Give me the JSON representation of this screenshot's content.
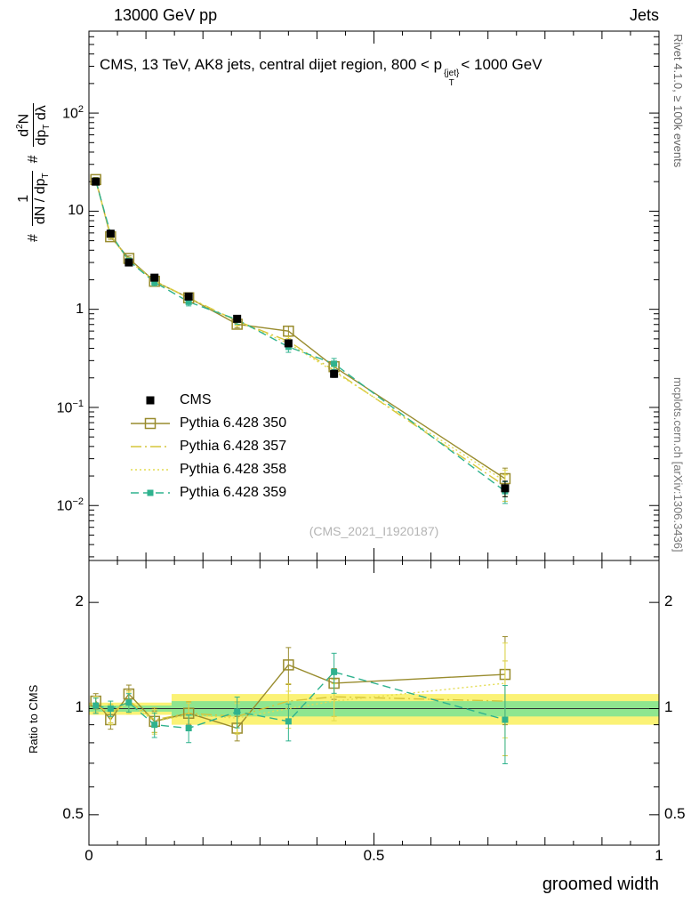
{
  "header": {
    "left": "13000 GeV pp",
    "right": "Jets"
  },
  "title": {
    "pre": "CMS, 13 TeV, AK8 jets, central dijet region, 800 < p",
    "sup": "{jet}",
    "sub": "T",
    "post": "< 1000 GeV"
  },
  "labels": {
    "ratio_ylabel": "Ratio to CMS",
    "xlabel": "groomed width",
    "rivet": "Rivet 4.1.0, ≥ 100k events",
    "mcplots": "mcplots.cern.ch [arXiv:1306.3436]",
    "watermark": "(CMS_2021_I1920187)"
  },
  "ylabel": {
    "hash1": "#",
    "frac1_num": "1",
    "frac1_den_base": "dN / dp",
    "frac1_den_sub": "T",
    "hash2": "#",
    "frac2_num_base": "d",
    "frac2_num_sup": "2",
    "frac2_num_base2": "N",
    "frac2_den_base": "dp",
    "frac2_den_sub": "T",
    "frac2_den_base2": " dλ"
  },
  "colors": {
    "frame": "#000000",
    "band_yellow": "#fbf276",
    "band_green": "#8fe68f",
    "ref_line": "#333333",
    "watermark": "#b4b4b4"
  },
  "axes": {
    "x_tick_labels": [
      {
        "v": 0,
        "t": "0"
      },
      {
        "v": 0.5,
        "t": "0.5"
      },
      {
        "v": 1,
        "t": "1"
      }
    ],
    "y_main_tick_labels": [
      {
        "v": 100,
        "base": "10",
        "exp": "2"
      },
      {
        "v": 10,
        "base": "10",
        "exp": ""
      },
      {
        "v": 1,
        "base": "1",
        "exp": ""
      },
      {
        "v": 0.1,
        "base": "10",
        "exp": "−1"
      },
      {
        "v": 0.01,
        "base": "10",
        "exp": "−2"
      }
    ],
    "y_ratio_tick_labels": [
      {
        "v": 2,
        "t": "2"
      },
      {
        "v": 1,
        "t": "1"
      },
      {
        "v": 0.5,
        "t": "0.5"
      }
    ]
  },
  "chart_data": {
    "type": "line",
    "title": "CMS, 13 TeV, AK8 jets, central dijet region, 800 < p_T^{jet} < 1000 GeV",
    "xlabel": "groomed width",
    "ylabel": "1/(dN/dp_T) d²N/(dp_T dλ)",
    "ratio_ylabel": "Ratio to CMS",
    "x_range": [
      0,
      1
    ],
    "y_scale": "log",
    "y_log_range": [
      -2.56,
      2.835
    ],
    "ratio_scale": "log",
    "ratio_range": [
      0.41,
      2.63
    ],
    "x_minor_step": 0.05,
    "x": [
      0.012,
      0.038,
      0.07,
      0.115,
      0.175,
      0.26,
      0.35,
      0.43,
      0.73
    ],
    "series": [
      {
        "name": "CMS",
        "color": "#000000",
        "line": "none",
        "marker": "square-filled",
        "marker_size": 9,
        "values": [
          20,
          5.9,
          3.0,
          2.1,
          1.35,
          0.8,
          0.45,
          0.22,
          0.015
        ],
        "err_rel": [
          0.05,
          0.05,
          0.05,
          0.05,
          0.06,
          0.06,
          0.07,
          0.08,
          0.18
        ]
      },
      {
        "name": "Pythia 6.428 350",
        "color": "#998c2e",
        "line": "solid",
        "marker": "square-open",
        "marker_size": 11,
        "values": [
          21.0,
          5.49,
          3.3,
          1.93,
          1.31,
          0.704,
          0.599,
          0.26,
          0.0188
        ],
        "ratio": [
          1.05,
          0.93,
          1.1,
          0.92,
          0.97,
          0.88,
          1.33,
          1.18,
          1.25
        ],
        "err_rel": [
          0.05,
          0.06,
          0.06,
          0.07,
          0.07,
          0.08,
          0.12,
          0.1,
          0.28
        ]
      },
      {
        "name": "Pythia 6.428 357",
        "color": "#d6c53a",
        "line": "dashdot",
        "marker": "none",
        "marker_size": 0,
        "values": [
          20.4,
          5.72,
          3.15,
          1.95,
          1.31,
          0.76,
          0.473,
          0.238,
          0.0158
        ],
        "ratio": [
          1.02,
          0.97,
          1.05,
          0.93,
          0.97,
          0.95,
          1.05,
          1.08,
          1.05
        ],
        "err_rel": [
          0.05,
          0.06,
          0.07,
          0.08,
          0.08,
          0.1,
          0.12,
          0.12,
          0.3
        ]
      },
      {
        "name": "Pythia 6.428 358",
        "color": "#e4dc52",
        "line": "dotted",
        "marker": "none",
        "marker_size": 0,
        "values": [
          20.6,
          5.66,
          3.12,
          1.93,
          1.3,
          0.752,
          0.45,
          0.231,
          0.0177
        ],
        "ratio": [
          1.03,
          0.96,
          1.04,
          0.92,
          0.96,
          0.94,
          1.0,
          1.05,
          1.18
        ],
        "err_rel": [
          0.05,
          0.06,
          0.07,
          0.08,
          0.08,
          0.1,
          0.12,
          0.12,
          0.3
        ]
      },
      {
        "name": "Pythia 6.428 359",
        "color": "#2fb28e",
        "line": "dashed",
        "marker": "square-filled",
        "marker_size": 7,
        "values": [
          20.4,
          5.9,
          3.12,
          1.89,
          1.19,
          0.784,
          0.414,
          0.279,
          0.014
        ],
        "ratio": [
          1.02,
          1.0,
          1.04,
          0.9,
          0.88,
          0.98,
          0.92,
          1.27,
          0.93
        ],
        "err_rel": [
          0.05,
          0.05,
          0.06,
          0.08,
          0.09,
          0.1,
          0.12,
          0.13,
          0.25
        ]
      }
    ],
    "ratio_bands": [
      {
        "x0": 0,
        "x1": 0.145,
        "yellow": [
          0.96,
          1.04
        ],
        "green": [
          0.98,
          1.02
        ]
      },
      {
        "x0": 0.145,
        "x1": 1.0,
        "yellow": [
          0.9,
          1.1
        ],
        "green": [
          0.95,
          1.05
        ]
      }
    ]
  }
}
